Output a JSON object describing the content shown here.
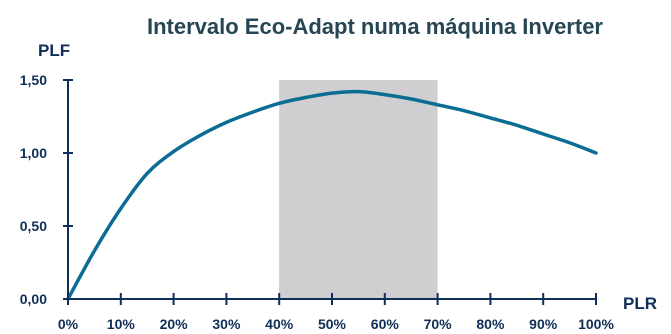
{
  "chart_data": {
    "type": "line",
    "title": "Intervalo Eco-Adapt numa máquina Inverter",
    "xlabel": "PLR",
    "ylabel": "PLF",
    "x_tick_labels": [
      "0%",
      "10%",
      "20%",
      "30%",
      "40%",
      "50%",
      "60%",
      "70%",
      "80%",
      "90%",
      "100%"
    ],
    "y_tick_labels": [
      "0,00",
      "0,50",
      "1,00",
      "1,50"
    ],
    "xlim": [
      0,
      1
    ],
    "ylim": [
      0,
      1.5
    ],
    "highlight_band": {
      "x_start": 0.4,
      "x_end": 0.7
    },
    "series": [
      {
        "x": [
          0.0,
          0.05,
          0.1,
          0.15,
          0.2,
          0.25,
          0.3,
          0.35,
          0.4,
          0.45,
          0.5,
          0.55,
          0.6,
          0.65,
          0.7,
          0.75,
          0.8,
          0.85,
          0.9,
          0.95,
          1.0
        ],
        "y": [
          0.0,
          0.33,
          0.62,
          0.86,
          1.01,
          1.12,
          1.21,
          1.28,
          1.34,
          1.38,
          1.41,
          1.42,
          1.4,
          1.37,
          1.33,
          1.29,
          1.24,
          1.19,
          1.13,
          1.07,
          1.0
        ]
      }
    ],
    "colors": {
      "line": "#0b6d93",
      "band": "#cfcfd1",
      "axis": "#0f2f57",
      "text": "#0f2f57",
      "title": "#264653"
    },
    "grid": false,
    "legend": "none"
  }
}
